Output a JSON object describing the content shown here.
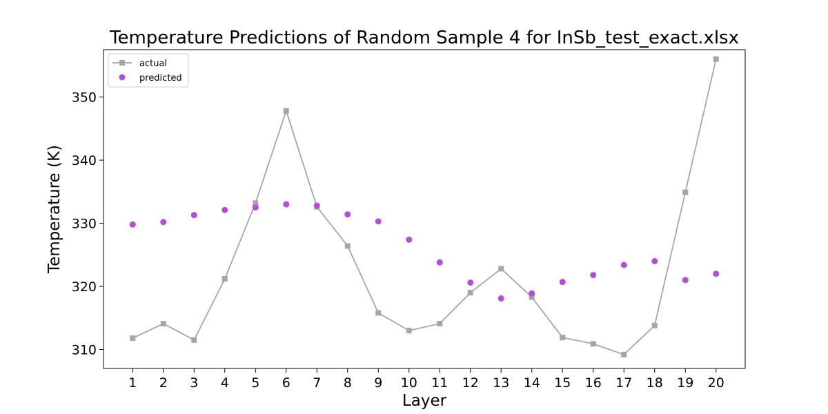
{
  "chart_data": {
    "type": "line",
    "title": "Temperature Predictions of Random Sample 4 for InSb_test_exact.xlsx",
    "xlabel": "Layer",
    "ylabel": "Temperature (K)",
    "x": [
      1,
      2,
      3,
      4,
      5,
      6,
      7,
      8,
      9,
      10,
      11,
      12,
      13,
      14,
      15,
      16,
      17,
      18,
      19,
      20
    ],
    "xticks": [
      "1",
      "2",
      "3",
      "4",
      "5",
      "6",
      "7",
      "8",
      "9",
      "10",
      "11",
      "12",
      "13",
      "14",
      "15",
      "16",
      "17",
      "18",
      "19",
      "20"
    ],
    "yticks": [
      "310",
      "320",
      "330",
      "340",
      "350"
    ],
    "xlim": [
      0.05,
      20.95
    ],
    "ylim": [
      307.0,
      357.5
    ],
    "grid": false,
    "legend_position": "top-left",
    "series": [
      {
        "name": "actual",
        "kind": "line-square-markers",
        "color": "#a6a6a6",
        "values": [
          311.8,
          314.1,
          311.5,
          321.2,
          333.2,
          347.8,
          332.6,
          326.4,
          315.8,
          313.0,
          314.1,
          319.0,
          322.8,
          318.3,
          311.9,
          310.9,
          309.2,
          313.8,
          334.9,
          356.0
        ]
      },
      {
        "name": "predicted",
        "kind": "scatter",
        "color": "#b34fd6",
        "values": [
          329.8,
          330.2,
          331.3,
          332.1,
          332.5,
          333.0,
          332.8,
          331.4,
          330.3,
          327.4,
          323.8,
          320.6,
          318.1,
          318.9,
          320.7,
          321.8,
          323.4,
          324.0,
          321.0,
          322.0
        ]
      }
    ]
  }
}
